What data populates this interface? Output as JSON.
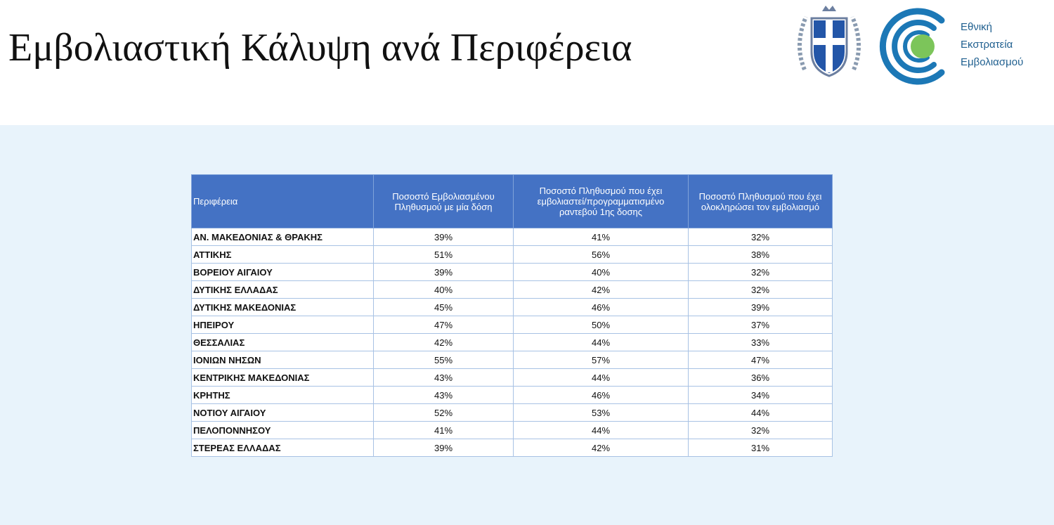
{
  "header": {
    "title": "Εμβολιαστική Κάλυψη ανά Περιφέρεια",
    "logo_text": [
      "Εθνική",
      "Εκστρατεία",
      "Εμβολιασμού"
    ]
  },
  "table": {
    "columns": [
      "Περιφέρεια",
      "Ποσοστό Εμβολιασμένου Πληθυσμού με μία δόση",
      "Ποσοστό Πληθυσμού  που έχει εμβολιαστεί/προγραμματισμένο ραντεβού 1ης δοσης",
      "Ποσοστό Πληθυσμού που έχει ολοκληρώσει τον εμβολιασμό"
    ],
    "rows": [
      [
        "ΑΝ. ΜΑΚΕΔΟΝΙΑΣ & ΘΡΑΚΗΣ",
        "39%",
        "41%",
        "32%"
      ],
      [
        "ΑΤΤΙΚΗΣ",
        "51%",
        "56%",
        "38%"
      ],
      [
        "ΒΟΡΕΙΟΥ ΑΙΓΑΙΟΥ",
        "39%",
        "40%",
        "32%"
      ],
      [
        "ΔΥΤΙΚΗΣ ΕΛΛΑΔΑΣ",
        "40%",
        "42%",
        "32%"
      ],
      [
        "ΔΥΤΙΚΗΣ ΜΑΚΕΔΟΝΙΑΣ",
        "45%",
        "46%",
        "39%"
      ],
      [
        "ΗΠΕΙΡΟΥ",
        "47%",
        "50%",
        "37%"
      ],
      [
        "ΘΕΣΣΑΛΙΑΣ",
        "42%",
        "44%",
        "33%"
      ],
      [
        "ΙΟΝΙΩΝ ΝΗΣΩΝ",
        "55%",
        "57%",
        "47%"
      ],
      [
        "ΚΕΝΤΡΙΚΗΣ ΜΑΚΕΔΟΝΙΑΣ",
        "43%",
        "44%",
        "36%"
      ],
      [
        "ΚΡΗΤΗΣ",
        "43%",
        "46%",
        "34%"
      ],
      [
        "ΝΟΤΙΟΥ ΑΙΓΑΙΟΥ",
        "52%",
        "53%",
        "44%"
      ],
      [
        "ΠΕΛΟΠΟΝΝΗΣΟΥ",
        "41%",
        "44%",
        "32%"
      ],
      [
        "ΣΤΕΡΕΑΣ ΕΛΛΑΔΑΣ",
        "39%",
        "42%",
        "31%"
      ]
    ]
  }
}
